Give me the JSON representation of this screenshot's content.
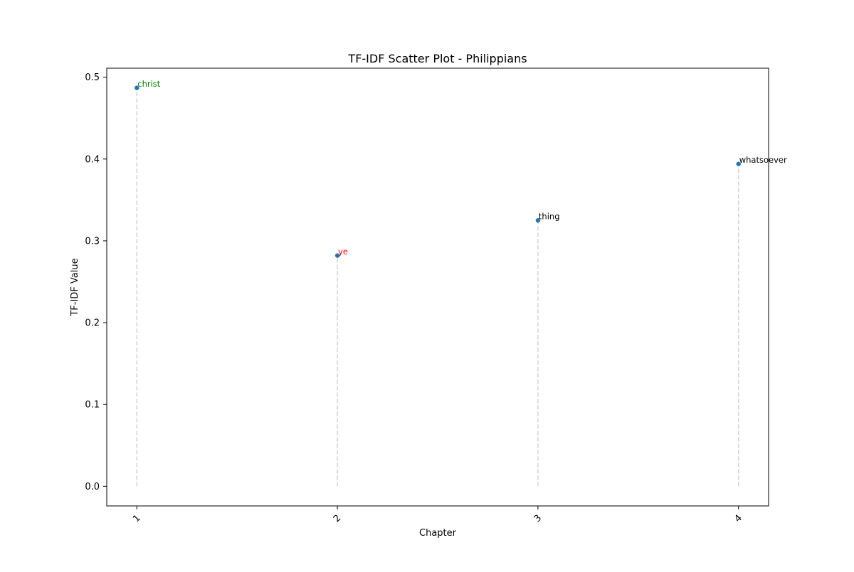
{
  "chart_data": {
    "type": "scatter",
    "title": "TF-IDF Scatter Plot - Philippians",
    "xlabel": "Chapter",
    "ylabel": "TF-IDF Value",
    "xlim": [
      0.85,
      4.15
    ],
    "ylim": [
      -0.024,
      0.511
    ],
    "x_ticks": [
      "1",
      "2",
      "3",
      "4"
    ],
    "y_ticks": [
      0.0,
      0.1,
      0.2,
      0.3,
      0.4,
      0.5
    ],
    "y_tick_labels": [
      "0.0",
      "0.1",
      "0.2",
      "0.3",
      "0.4",
      "0.5"
    ],
    "grid": false,
    "stems": {
      "style": "dashed",
      "color": "#d3d3d3",
      "from": 0
    },
    "marker_color": "#1f77b4",
    "points": [
      {
        "x": 1,
        "y": 0.487,
        "label": "christ",
        "label_color": "#008000"
      },
      {
        "x": 2,
        "y": 0.282,
        "label": "ye",
        "label_color": "#ff0000"
      },
      {
        "x": 3,
        "y": 0.325,
        "label": "thing",
        "label_color": "#000000"
      },
      {
        "x": 4,
        "y": 0.394,
        "label": "whatsoever",
        "label_color": "#000000"
      }
    ]
  }
}
